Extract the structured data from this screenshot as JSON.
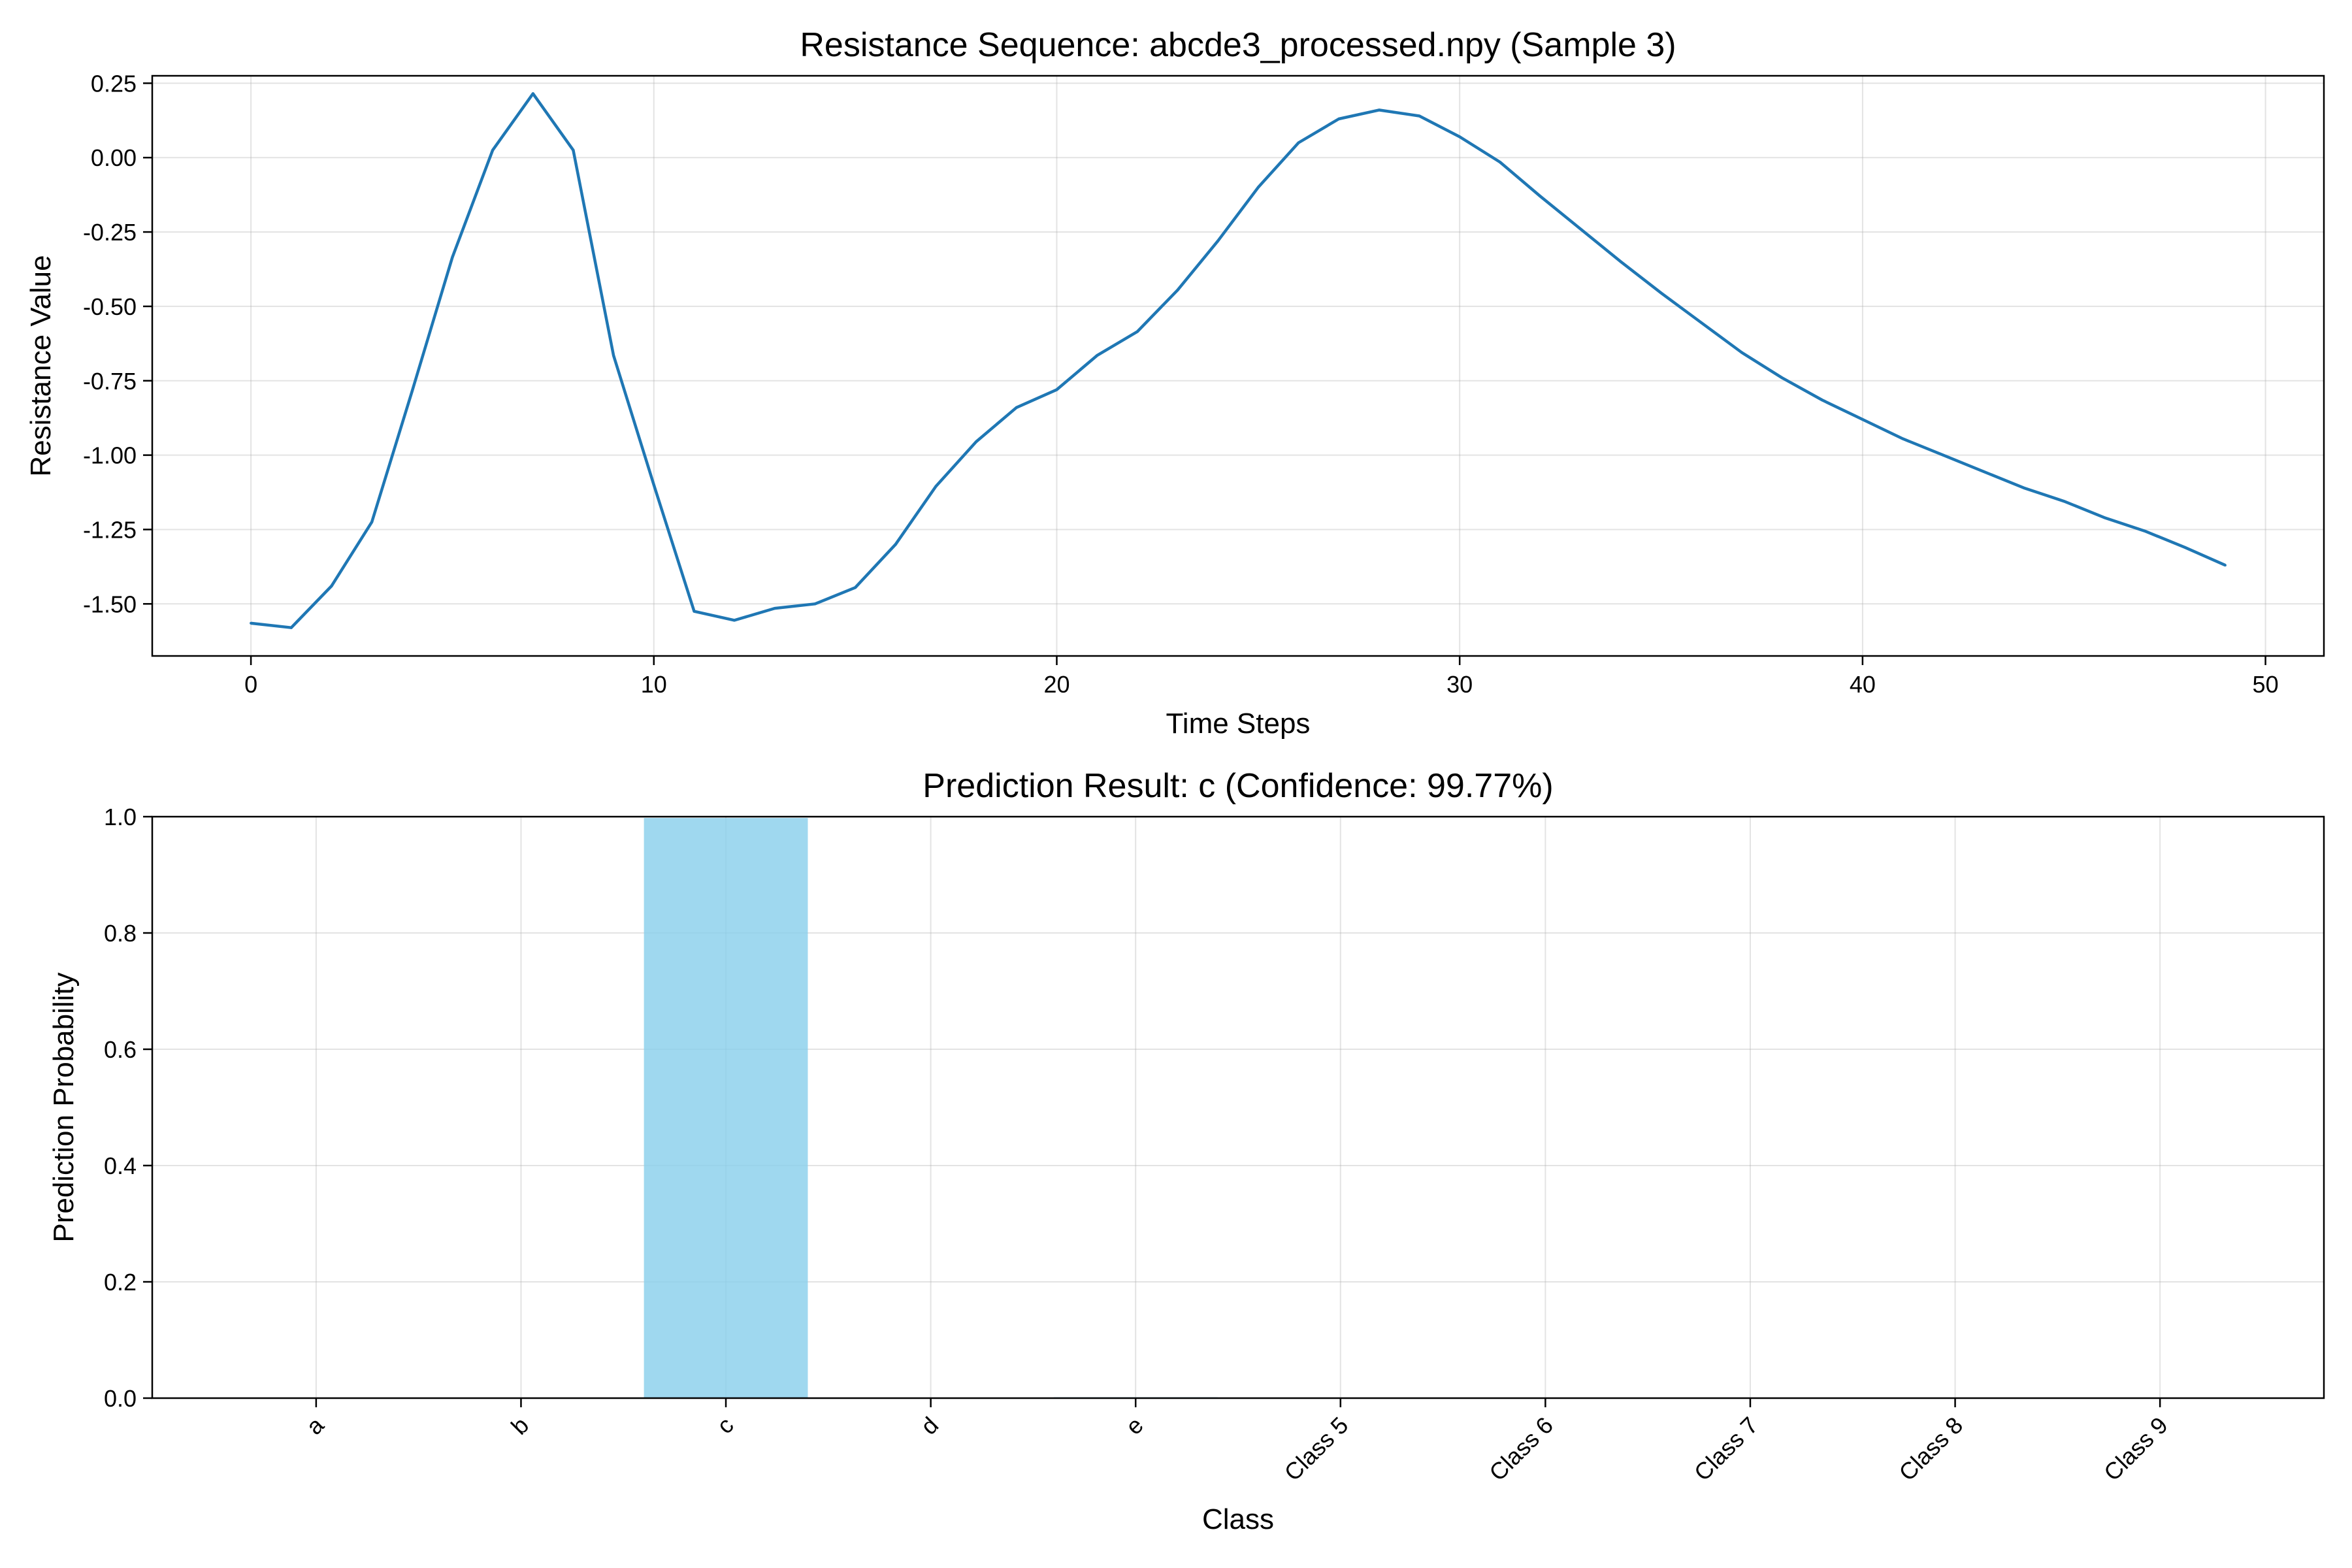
{
  "chart_data": [
    {
      "type": "line",
      "title": "Resistance Sequence: abcde3_processed.npy (Sample 3)",
      "xlabel": "Time Steps",
      "ylabel": "Resistance Value",
      "xlim": [
        -2.45,
        51.45
      ],
      "ylim": [
        -1.675,
        0.275
      ],
      "xticks": [
        0,
        10,
        20,
        30,
        40,
        50
      ],
      "yticks": [
        0.25,
        0.0,
        -0.25,
        -0.5,
        -0.75,
        -1.0,
        -1.25,
        -1.5
      ],
      "ytick_labels": [
        "0.25",
        "0.00",
        "-0.25",
        "-0.50",
        "-0.75",
        "-1.00",
        "-1.25",
        "-1.50"
      ],
      "grid": true,
      "color": "#1f77b4",
      "series": [
        {
          "name": "resistance",
          "x": [
            0,
            1,
            2,
            3,
            4,
            5,
            6,
            7,
            8,
            9,
            10,
            11,
            12,
            13,
            14,
            15,
            16,
            17,
            18,
            19,
            20,
            21,
            22,
            23,
            24,
            25,
            26,
            27,
            28,
            29,
            30,
            31,
            32,
            33,
            34,
            35,
            36,
            37,
            38,
            39,
            40,
            41,
            42,
            43,
            44,
            45,
            46,
            47,
            48,
            49
          ],
          "values": [
            -1.565,
            -1.58,
            -1.44,
            -1.225,
            -0.785,
            -0.335,
            0.025,
            0.215,
            0.025,
            -0.665,
            -1.1,
            -1.525,
            -1.555,
            -1.515,
            -1.5,
            -1.445,
            -1.3,
            -1.105,
            -0.955,
            -0.84,
            -0.78,
            -0.665,
            -0.585,
            -0.445,
            -0.28,
            -0.1,
            0.05,
            0.13,
            0.16,
            0.14,
            0.07,
            -0.015,
            -0.13,
            -0.24,
            -0.35,
            -0.455,
            -0.555,
            -0.655,
            -0.74,
            -0.815,
            -0.88,
            -0.945,
            -1.0,
            -1.055,
            -1.11,
            -1.155,
            -1.21,
            -1.255,
            -1.31,
            -1.37
          ]
        }
      ]
    },
    {
      "type": "bar",
      "title": "Prediction Result: c (Confidence: 99.77%)",
      "xlabel": "Class",
      "ylabel": "Prediction Probability",
      "ylim": [
        0,
        1.0
      ],
      "yticks": [
        0.0,
        0.2,
        0.4,
        0.6,
        0.8,
        1.0
      ],
      "ytick_labels": [
        "0.0",
        "0.2",
        "0.4",
        "0.6",
        "0.8",
        "1.0"
      ],
      "grid": true,
      "color": "#87ceeb",
      "categories": [
        "a",
        "b",
        "c",
        "d",
        "e",
        "Class 5",
        "Class 6",
        "Class 7",
        "Class 8",
        "Class 9"
      ],
      "values": [
        0.0,
        0.0,
        0.9977,
        0.0,
        0.0015,
        0.0,
        0.0,
        0.0,
        0.0,
        0.0
      ]
    }
  ]
}
